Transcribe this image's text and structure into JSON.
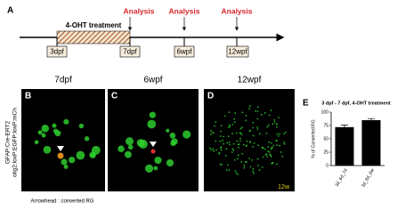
{
  "timeline": {
    "label": "A",
    "treatment": "4-OHT treatment",
    "analysis": [
      "Analysis",
      "Analysis",
      "Analysis"
    ],
    "timepoints": [
      "3dpf",
      "7dpf",
      "6wpf",
      "12wpf"
    ]
  },
  "panels": {
    "row_label": [
      "GFAP:Cre-ERT2",
      "olig2:loxP:EGFP:loxP:mCh"
    ],
    "titles": [
      "7dpf",
      "6wpf",
      "12wpf"
    ],
    "letters": [
      "B",
      "C",
      "D"
    ],
    "stamp": "12w",
    "caption": "Arrowhead : converted RG"
  },
  "chart_data": {
    "type": "bar",
    "label": "E",
    "title": "3 dpf - 7 dpf, 4-OHT treatment",
    "y_label": "% of Converted RG",
    "categories": [
      "3d_6d_7d",
      "3d_6d_6w"
    ],
    "values": [
      72,
      85
    ],
    "errors": [
      4,
      3
    ],
    "color": "#000000",
    "ylim": [
      0,
      100
    ],
    "yticks": [
      0,
      25,
      50,
      75,
      100
    ]
  }
}
